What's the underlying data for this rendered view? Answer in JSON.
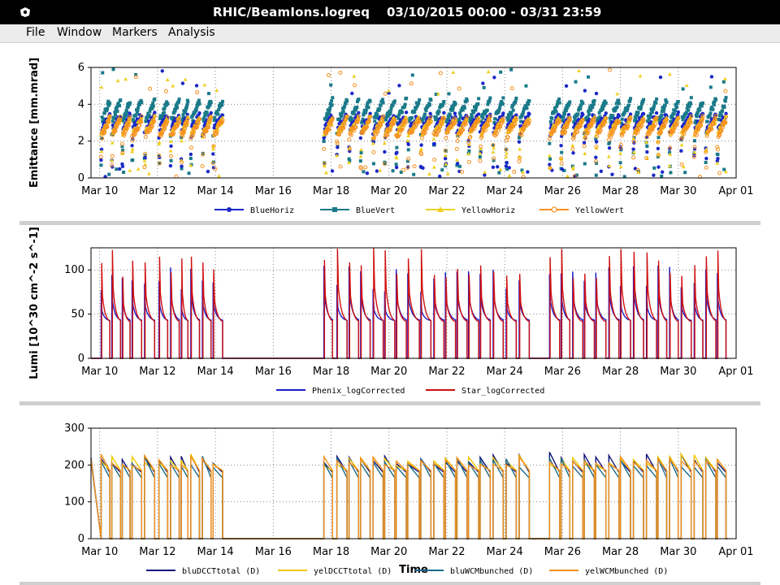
{
  "window": {
    "title": "RHIC/BeamIons.logreq",
    "date_range": "03/10/2015 00:00 - 03/31 23:59"
  },
  "menu": [
    {
      "label": "File"
    },
    {
      "label": "Window"
    },
    {
      "label": "Markers"
    },
    {
      "label": "Analysis"
    }
  ],
  "chart_data": [
    {
      "type": "scatter",
      "title": "",
      "xlabel": "",
      "ylabel": "Emittance [mm.mrad]",
      "xlim": [
        9.7,
        32.0
      ],
      "ylim": [
        0,
        6
      ],
      "x_ticks": [
        "Mar 10",
        "Mar 12",
        "Mar 14",
        "Mar 16",
        "Mar 18",
        "Mar 20",
        "Mar 22",
        "Mar 24",
        "Mar 26",
        "Mar 28",
        "Mar 30",
        "Apr 01"
      ],
      "y_ticks": [
        0,
        2,
        4,
        6
      ],
      "grid": true,
      "legend_position": "bottom",
      "series": [
        {
          "name": "BlueHoriz",
          "color": "#1a28c8",
          "marker": "circle",
          "values_typical": [
            2.6,
            3.4
          ]
        },
        {
          "name": "BlueVert",
          "color": "#1a7a8a",
          "marker": "square",
          "values_typical": [
            3.0,
            4.2
          ]
        },
        {
          "name": "YellowHoriz",
          "color": "#f0d020",
          "marker": "triangle",
          "values_typical": [
            2.4,
            3.2
          ]
        },
        {
          "name": "YellowVert",
          "color": "#f5901e",
          "marker": "circle-open",
          "values_typical": [
            2.2,
            3.2
          ]
        }
      ]
    },
    {
      "type": "line",
      "title": "",
      "xlabel": "",
      "ylabel": "Lumi [10^30 cm^-2 s^-1]",
      "xlim": [
        9.7,
        32.0
      ],
      "ylim": [
        0,
        125
      ],
      "x_ticks": [
        "Mar 10",
        "Mar 12",
        "Mar 14",
        "Mar 16",
        "Mar 18",
        "Mar 20",
        "Mar 22",
        "Mar 24",
        "Mar 26",
        "Mar 28",
        "Mar 30",
        "Apr 01"
      ],
      "y_ticks": [
        0,
        50,
        100
      ],
      "grid": true,
      "legend_position": "bottom",
      "series": [
        {
          "name": "Phenix_logCorrected",
          "color": "#1a1ac8",
          "peak_typical": 100,
          "end_typical": 42
        },
        {
          "name": "Star_logCorrected",
          "color": "#d01010",
          "peak_typical": 120,
          "end_typical": 40
        }
      ]
    },
    {
      "type": "line",
      "title": "",
      "xlabel": "Time",
      "ylabel": "",
      "xlim": [
        9.7,
        32.0
      ],
      "ylim": [
        0,
        300
      ],
      "x_ticks": [
        "Mar 10",
        "Mar 12",
        "Mar 14",
        "Mar 16",
        "Mar 18",
        "Mar 20",
        "Mar 22",
        "Mar 24",
        "Mar 26",
        "Mar 28",
        "Mar 30",
        "Apr 01"
      ],
      "y_ticks": [
        0,
        100,
        200,
        300
      ],
      "grid": true,
      "legend_position": "bottom",
      "series": [
        {
          "name": "bluDCCTtotal (D)",
          "color": "#10107a",
          "start_typical": 220,
          "end_typical": 180
        },
        {
          "name": "yelDCCTtotal (D)",
          "color": "#f0c800",
          "start_typical": 215,
          "end_typical": 185
        },
        {
          "name": "bluWCMbunched (D)",
          "color": "#1a6a8a",
          "start_typical": 210,
          "end_typical": 165
        },
        {
          "name": "yelWCMbunched (D)",
          "color": "#f5901e",
          "start_typical": 215,
          "end_typical": 185
        }
      ]
    }
  ],
  "fills": [
    [
      10.05,
      10.35
    ],
    [
      10.42,
      10.72
    ],
    [
      10.78,
      11.05
    ],
    [
      11.12,
      11.45
    ],
    [
      11.55,
      11.9
    ],
    [
      12.05,
      12.35
    ],
    [
      12.45,
      12.75
    ],
    [
      12.82,
      13.05
    ],
    [
      13.15,
      13.45
    ],
    [
      13.55,
      13.85
    ],
    [
      13.92,
      14.25
    ],
    [
      17.75,
      18.05
    ],
    [
      18.2,
      18.55
    ],
    [
      18.62,
      18.95
    ],
    [
      19.02,
      19.35
    ],
    [
      19.45,
      19.8
    ],
    [
      19.85,
      20.2
    ],
    [
      20.25,
      20.6
    ],
    [
      20.65,
      21.05
    ],
    [
      21.1,
      21.45
    ],
    [
      21.55,
      21.9
    ],
    [
      21.95,
      22.3
    ],
    [
      22.35,
      22.7
    ],
    [
      22.75,
      23.1
    ],
    [
      23.15,
      23.5
    ],
    [
      23.6,
      23.95
    ],
    [
      24.05,
      24.4
    ],
    [
      24.5,
      24.85
    ],
    [
      25.55,
      25.9
    ],
    [
      25.95,
      26.25
    ],
    [
      26.35,
      26.7
    ],
    [
      26.75,
      27.1
    ],
    [
      27.15,
      27.5
    ],
    [
      27.6,
      27.95
    ],
    [
      28.0,
      28.35
    ],
    [
      28.45,
      28.8
    ],
    [
      28.9,
      29.25
    ],
    [
      29.3,
      29.6
    ],
    [
      29.7,
      30.0
    ],
    [
      30.1,
      30.45
    ],
    [
      30.55,
      30.85
    ],
    [
      30.95,
      31.3
    ],
    [
      31.35,
      31.65
    ]
  ]
}
